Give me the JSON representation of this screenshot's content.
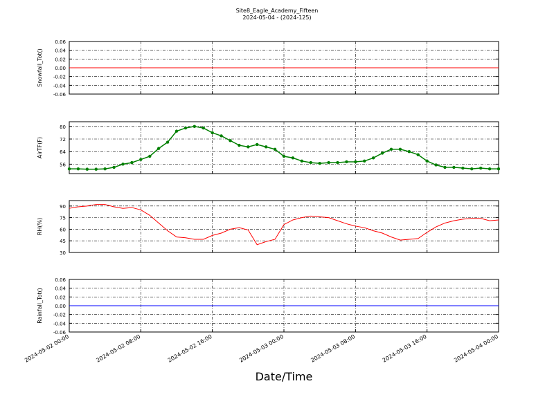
{
  "chart_data": [
    {
      "type": "line",
      "title": "Site8_Eagle_Academy_Fifteen",
      "subtitle": "2024-05-04 - (2024-125)",
      "ylabel": "Snowfall_Tot()",
      "x": [
        "2024-05-02 00:00",
        "2024-05-04 00:00"
      ],
      "series": [
        {
          "color": "#ff0000",
          "values": [
            0,
            0
          ]
        }
      ],
      "xlim": [
        "2024-05-02 00:00",
        "2024-05-04 00:00"
      ],
      "xticks": [
        "2024-05-02 00:00",
        "2024-05-02 08:00",
        "2024-05-02 16:00",
        "2024-05-03 00:00",
        "2024-05-03 08:00",
        "2024-05-03 16:00",
        "2024-05-04 00:00"
      ],
      "ylim": [
        -0.06,
        0.06
      ],
      "yticks": [
        {
          "value": -0.06,
          "label": "-0.06"
        },
        {
          "value": -0.04,
          "label": "-0.04"
        },
        {
          "value": -0.02,
          "label": "-0.02"
        },
        {
          "value": 0,
          "label": "0.00"
        },
        {
          "value": 0.02,
          "label": "0.02"
        },
        {
          "value": 0.04,
          "label": "0.04"
        },
        {
          "value": 0.06,
          "label": "0.06"
        }
      ],
      "grid": true
    },
    {
      "type": "line",
      "ylabel": "AirTF(F)",
      "markers": true,
      "x": [
        "2024-05-02 00:00",
        "2024-05-02 01:00",
        "2024-05-02 02:00",
        "2024-05-02 03:00",
        "2024-05-02 04:00",
        "2024-05-02 05:00",
        "2024-05-02 06:00",
        "2024-05-02 07:00",
        "2024-05-02 08:00",
        "2024-05-02 09:00",
        "2024-05-02 10:00",
        "2024-05-02 11:00",
        "2024-05-02 12:00",
        "2024-05-02 13:00",
        "2024-05-02 14:00",
        "2024-05-02 15:00",
        "2024-05-02 16:00",
        "2024-05-02 17:00",
        "2024-05-02 18:00",
        "2024-05-02 19:00",
        "2024-05-02 20:00",
        "2024-05-02 21:00",
        "2024-05-02 22:00",
        "2024-05-02 23:00",
        "2024-05-03 00:00",
        "2024-05-03 01:00",
        "2024-05-03 02:00",
        "2024-05-03 03:00",
        "2024-05-03 04:00",
        "2024-05-03 05:00",
        "2024-05-03 06:00",
        "2024-05-03 07:00",
        "2024-05-03 08:00",
        "2024-05-03 09:00",
        "2024-05-03 10:00",
        "2024-05-03 11:00",
        "2024-05-03 12:00",
        "2024-05-03 13:00",
        "2024-05-03 14:00",
        "2024-05-03 15:00",
        "2024-05-03 16:00",
        "2024-05-03 17:00",
        "2024-05-03 18:00",
        "2024-05-03 19:00",
        "2024-05-03 20:00",
        "2024-05-03 21:00",
        "2024-05-03 22:00",
        "2024-05-03 23:00",
        "2024-05-04 00:00"
      ],
      "series": [
        {
          "color": "#007f00",
          "values": [
            53,
            53,
            52.8,
            52.8,
            53,
            54,
            56,
            57,
            59,
            61,
            66,
            70,
            77,
            79,
            80,
            79,
            76,
            74,
            71,
            68,
            67,
            68.5,
            67,
            65.5,
            61,
            60,
            58,
            57,
            56.5,
            57,
            57,
            57.5,
            57.5,
            58,
            60,
            63,
            65.5,
            65.5,
            64,
            62,
            58,
            55.5,
            54,
            54,
            53.5,
            53,
            53.5,
            53,
            53
          ]
        }
      ],
      "xlim": [
        "2024-05-02 00:00",
        "2024-05-04 00:00"
      ],
      "xticks": [
        "2024-05-02 00:00",
        "2024-05-02 08:00",
        "2024-05-02 16:00",
        "2024-05-03 00:00",
        "2024-05-03 08:00",
        "2024-05-03 16:00",
        "2024-05-04 00:00"
      ],
      "ylim": [
        50,
        83
      ],
      "yticks": [
        56,
        64,
        72,
        80
      ],
      "grid": true
    },
    {
      "type": "line",
      "ylabel": "RH(%)",
      "x": [
        "2024-05-02 00:00",
        "2024-05-02 01:00",
        "2024-05-02 02:00",
        "2024-05-02 03:00",
        "2024-05-02 04:00",
        "2024-05-02 05:00",
        "2024-05-02 06:00",
        "2024-05-02 07:00",
        "2024-05-02 08:00",
        "2024-05-02 09:00",
        "2024-05-02 10:00",
        "2024-05-02 11:00",
        "2024-05-02 12:00",
        "2024-05-02 13:00",
        "2024-05-02 14:00",
        "2024-05-02 15:00",
        "2024-05-02 16:00",
        "2024-05-02 17:00",
        "2024-05-02 18:00",
        "2024-05-02 19:00",
        "2024-05-02 20:00",
        "2024-05-02 21:00",
        "2024-05-02 22:00",
        "2024-05-02 23:00",
        "2024-05-03 00:00",
        "2024-05-03 01:00",
        "2024-05-03 02:00",
        "2024-05-03 03:00",
        "2024-05-03 04:00",
        "2024-05-03 05:00",
        "2024-05-03 06:00",
        "2024-05-03 07:00",
        "2024-05-03 08:00",
        "2024-05-03 09:00",
        "2024-05-03 10:00",
        "2024-05-03 11:00",
        "2024-05-03 12:00",
        "2024-05-03 13:00",
        "2024-05-03 14:00",
        "2024-05-03 15:00",
        "2024-05-03 16:00",
        "2024-05-03 17:00",
        "2024-05-03 18:00",
        "2024-05-03 19:00",
        "2024-05-03 20:00",
        "2024-05-03 21:00",
        "2024-05-03 22:00",
        "2024-05-03 23:00",
        "2024-05-04 00:00"
      ],
      "series": [
        {
          "color": "#ff0000",
          "values": [
            87,
            89,
            90,
            92,
            92,
            89,
            87,
            88,
            85,
            78,
            68,
            58,
            50,
            49,
            47,
            47,
            52,
            55,
            60,
            62,
            59,
            40,
            44,
            47,
            66,
            72,
            75,
            77,
            76,
            75,
            71,
            67,
            64,
            62,
            58,
            55,
            50,
            46,
            47,
            48,
            56,
            63,
            68,
            71,
            73,
            74,
            74,
            71,
            72
          ]
        }
      ],
      "xlim": [
        "2024-05-02 00:00",
        "2024-05-04 00:00"
      ],
      "xticks": [
        "2024-05-02 00:00",
        "2024-05-02 08:00",
        "2024-05-02 16:00",
        "2024-05-03 00:00",
        "2024-05-03 08:00",
        "2024-05-03 16:00",
        "2024-05-04 00:00"
      ],
      "ylim": [
        30,
        97
      ],
      "yticks": [
        30,
        45,
        60,
        75,
        90
      ],
      "grid": true
    },
    {
      "type": "line",
      "ylabel": "Rainfall_Tot()",
      "xlabel": "Date/Time",
      "x": [
        "2024-05-02 00:00",
        "2024-05-04 00:00"
      ],
      "series": [
        {
          "color": "#0000ff",
          "values": [
            0,
            0
          ]
        }
      ],
      "xlim": [
        "2024-05-02 00:00",
        "2024-05-04 00:00"
      ],
      "xticks": [
        "2024-05-02 00:00",
        "2024-05-02 08:00",
        "2024-05-02 16:00",
        "2024-05-03 00:00",
        "2024-05-03 08:00",
        "2024-05-03 16:00",
        "2024-05-04 00:00"
      ],
      "ylim": [
        -0.06,
        0.06
      ],
      "yticks": [
        {
          "value": -0.06,
          "label": "-0.06"
        },
        {
          "value": -0.04,
          "label": "-0.04"
        },
        {
          "value": -0.02,
          "label": "-0.02"
        },
        {
          "value": 0,
          "label": "0.00"
        },
        {
          "value": 0.02,
          "label": "0.02"
        },
        {
          "value": 0.04,
          "label": "0.04"
        },
        {
          "value": 0.06,
          "label": "0.06"
        }
      ],
      "grid": true,
      "show_xtick_labels": true
    }
  ]
}
